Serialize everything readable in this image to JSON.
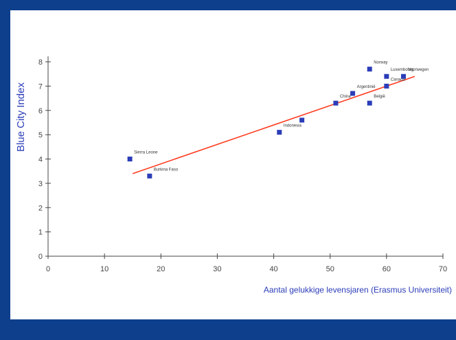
{
  "chart_data": {
    "type": "scatter",
    "xlabel": "Aantal gelukkige levensjaren (Erasmus Universiteit)",
    "ylabel": "Blue City Index",
    "xlim": [
      0,
      70
    ],
    "ylim": [
      0,
      8
    ],
    "xticks": [
      0,
      10,
      20,
      30,
      40,
      50,
      60,
      70
    ],
    "yticks": [
      0,
      1,
      2,
      3,
      4,
      5,
      6,
      7,
      8
    ],
    "x_tick_labels": [
      "0",
      "10",
      "20",
      "30",
      "40",
      "50",
      "60",
      "70"
    ],
    "y_tick_labels": [
      "0",
      "1",
      "2",
      "3",
      "4",
      "5",
      "6",
      "7",
      "8"
    ],
    "grid": false,
    "marker_color": "#2b3db8",
    "trend_color": "#ff3b1f",
    "points": [
      {
        "x": 14.5,
        "y": 4.0,
        "label": "Sierra Leone"
      },
      {
        "x": 18.0,
        "y": 3.3,
        "label": "Burkina Faso"
      },
      {
        "x": 41.0,
        "y": 5.1,
        "label": "Indonesia"
      },
      {
        "x": 45.0,
        "y": 5.6,
        "label": ""
      },
      {
        "x": 51.0,
        "y": 6.3,
        "label": "China"
      },
      {
        "x": 54.0,
        "y": 6.7,
        "label": "Argentinië"
      },
      {
        "x": 57.0,
        "y": 7.7,
        "label": "Norway"
      },
      {
        "x": 57.0,
        "y": 6.3,
        "label": "België"
      },
      {
        "x": 60.0,
        "y": 7.4,
        "label": "Luxembourg"
      },
      {
        "x": 60.0,
        "y": 7.0,
        "label": "Canada"
      },
      {
        "x": 63.0,
        "y": 7.4,
        "label": "Noorwegen"
      }
    ],
    "trendline": {
      "x": [
        15,
        65
      ],
      "y": [
        3.4,
        7.4
      ]
    }
  }
}
